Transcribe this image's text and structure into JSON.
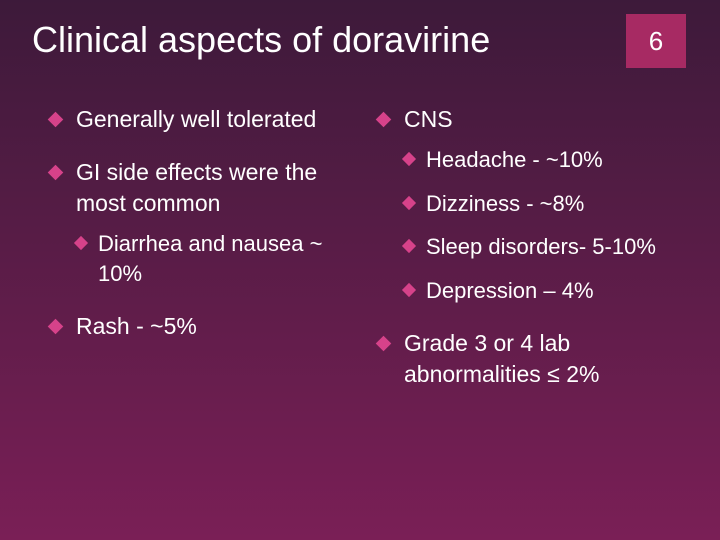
{
  "colors": {
    "bg_top": "#3d1a3a",
    "bg_bottom": "#7a1f56",
    "accent": "#a72a63",
    "bullet": "#d6428a",
    "text": "#ffffff"
  },
  "title": "Clinical aspects of doravirine",
  "slide_number": "6",
  "left_bullets": [
    {
      "text": "Generally well tolerated",
      "sub": []
    },
    {
      "text": "GI side effects were the most common",
      "sub": [
        {
          "text": "Diarrhea and nausea ~ 10%"
        }
      ]
    },
    {
      "text": "Rash -  ~5%",
      "sub": []
    }
  ],
  "right_bullets": [
    {
      "text": "CNS",
      "sub": [
        {
          "text": "Headache - ~10%"
        },
        {
          "text": "Dizziness - ~8%"
        },
        {
          "text": "Sleep disorders- 5-10%"
        },
        {
          "text": "Depression – 4%"
        }
      ]
    },
    {
      "text": "Grade 3 or 4 lab abnormalities ≤ 2%",
      "sub": []
    }
  ],
  "typography": {
    "title_fontsize": 36,
    "body_fontsize": 23,
    "sub_fontsize": 22,
    "number_fontsize": 26
  }
}
